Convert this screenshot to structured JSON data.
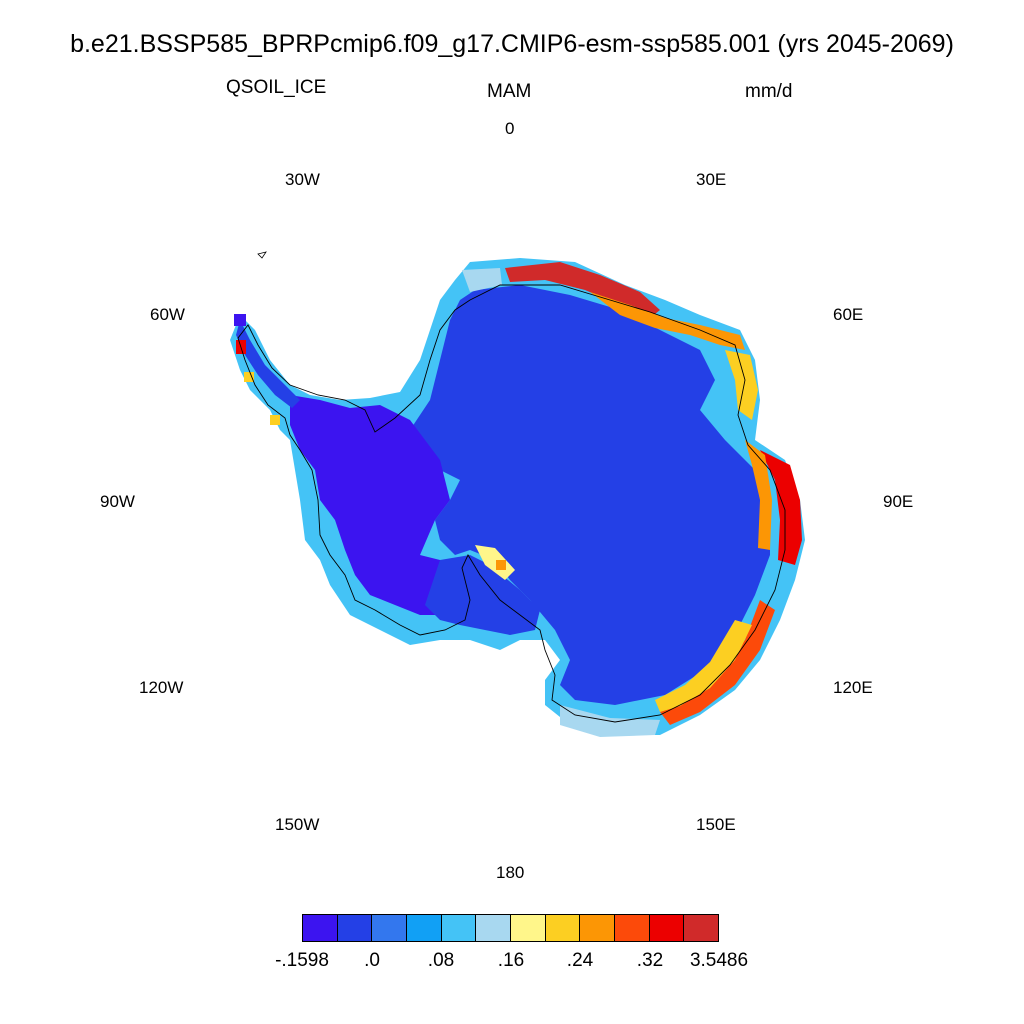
{
  "title": "b.e21.BSSP585_BPRPcmip6.f09_g17.CMIP6-esm-ssp585.001 (yrs 2045-2069)",
  "variable": "QSOIL_ICE",
  "season": "MAM",
  "units": "mm/d",
  "longitude_labels": [
    "0",
    "30E",
    "60E",
    "90E",
    "120E",
    "150E",
    "180",
    "150W",
    "120W",
    "90W",
    "60W",
    "30W"
  ],
  "colorbar": {
    "colors": [
      "#3c14f0",
      "#2440e6",
      "#3377ee",
      "#11a0f5",
      "#44c3f6",
      "#a8d8f0",
      "#fff68a",
      "#fccf22",
      "#fc9605",
      "#fc4a0a",
      "#ec0000",
      "#d02a2a"
    ],
    "labels": [
      "-.1598",
      ".0",
      ".08",
      ".16",
      ".24",
      ".32",
      "3.5486"
    ]
  },
  "chart_data": {
    "type": "heatmap",
    "title": "b.e21.BSSP585_BPRPcmip6.f09_g17.CMIP6-esm-ssp585.001 (yrs 2045-2069)",
    "variable": "QSOIL_ICE",
    "season": "MAM",
    "units": "mm/d",
    "projection": "south polar stereographic",
    "region": "Antarctica",
    "color_levels": [
      -0.1598,
      0.0,
      0.08,
      0.16,
      0.24,
      0.32,
      3.5486
    ]
  }
}
